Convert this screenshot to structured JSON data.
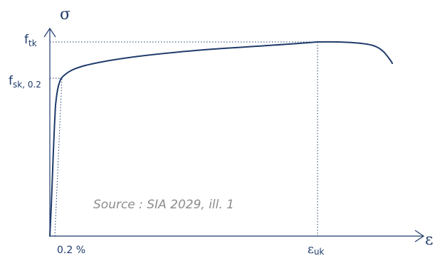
{
  "diagram": {
    "y_axis_symbol": "σ",
    "x_axis_symbol": "ε",
    "labels": {
      "ftk_main": "f",
      "ftk_sub": "tk",
      "fsk_main": "f",
      "fsk_sub": "sk, 0.2",
      "offset_strain": "0.2 %",
      "euk_main": "ε",
      "euk_sub": "uk"
    },
    "source_note": "Source : SIA 2029, ill. 1",
    "colors": {
      "curve": "#1f3b6b",
      "axis": "#1f3b6b",
      "guide_lines": "#1f3b6b",
      "note": "#8c8c8c"
    }
  }
}
